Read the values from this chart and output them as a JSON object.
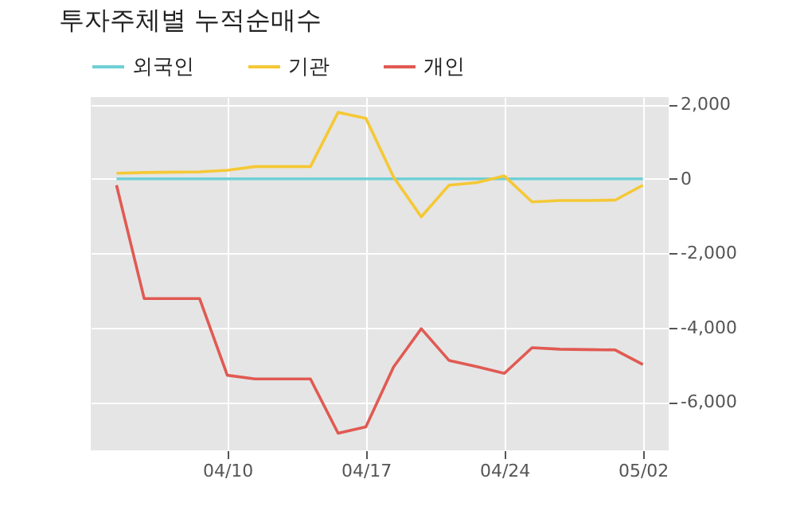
{
  "chart_data": {
    "type": "line",
    "title": "투자주체별 누적순매수",
    "categories": [
      null,
      null,
      null,
      null,
      "04/10",
      null,
      null,
      null,
      null,
      "04/17",
      null,
      null,
      null,
      null,
      "04/24",
      null,
      null,
      null,
      null,
      "05/02"
    ],
    "series": [
      {
        "name": "외국인",
        "color": "#6fd0d6",
        "values": [
          0,
          0,
          0,
          0,
          0,
          0,
          0,
          0,
          0,
          0,
          0,
          0,
          0,
          0,
          0,
          0,
          0,
          0,
          0,
          0
        ]
      },
      {
        "name": "기관",
        "color": "#f5c835",
        "values": [
          150,
          170,
          180,
          190,
          230,
          330,
          330,
          330,
          1790,
          1630,
          50,
          -1020,
          -170,
          -100,
          80,
          -620,
          -580,
          -580,
          -570,
          -170
        ]
      },
      {
        "name": "개인",
        "color": "#e05a52",
        "values": [
          -170,
          -3220,
          -3220,
          -3220,
          -5280,
          -5380,
          -5380,
          -5380,
          -6840,
          -6670,
          -5060,
          -4030,
          -4880,
          -5050,
          -5230,
          -4540,
          -4580,
          -4590,
          -4600,
          -4990
        ]
      }
    ],
    "ylim": [
      -7300,
      2200
    ],
    "yticks": [
      {
        "value": -6000,
        "label": "-6,000"
      },
      {
        "value": -4000,
        "label": "-4,000"
      },
      {
        "value": -2000,
        "label": "-2,000"
      },
      0,
      {
        "value": 2000,
        "label": "2,000"
      }
    ],
    "grid": true,
    "legend": "top left",
    "marker": "none",
    "line_style": "solid"
  }
}
